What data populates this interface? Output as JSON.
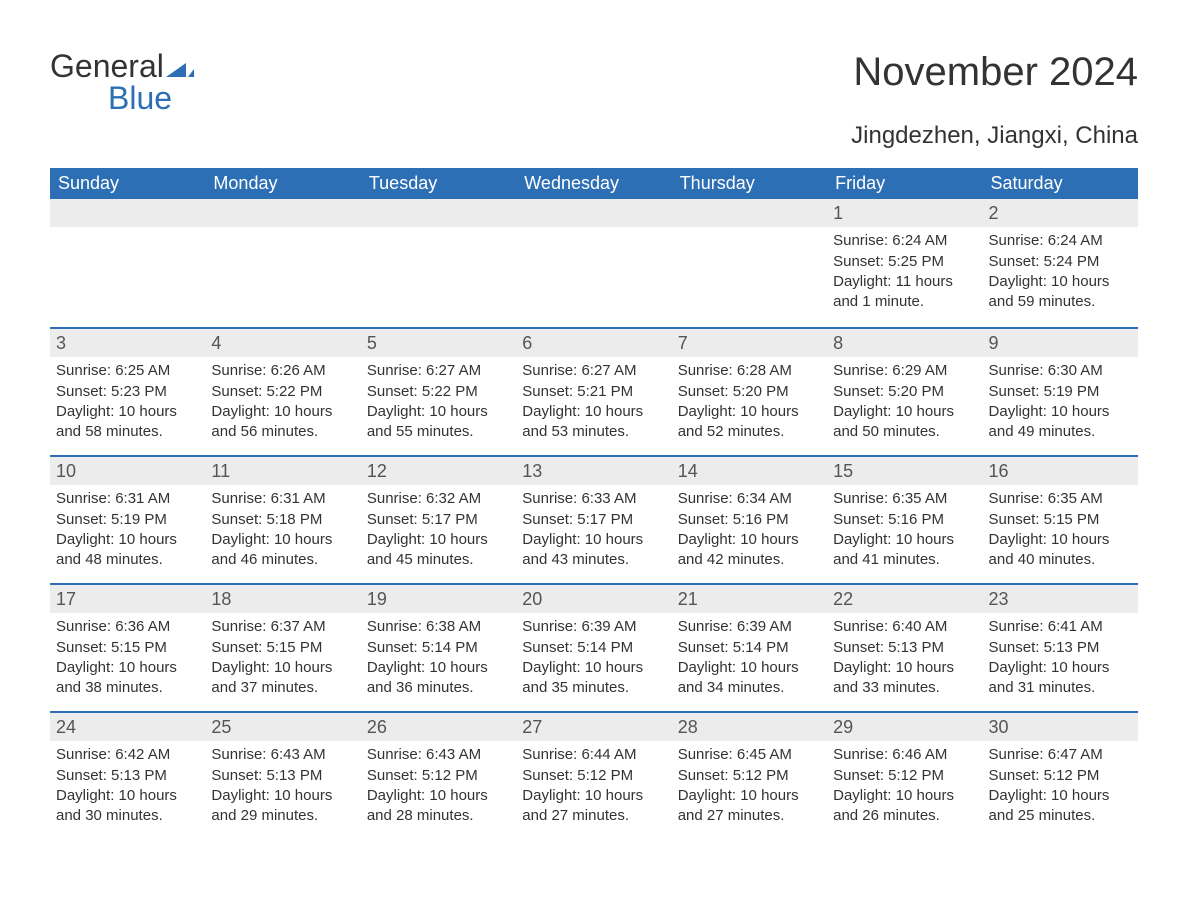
{
  "logo": {
    "text_general": "General",
    "text_blue": "Blue",
    "brand_color": "#2d6fb5"
  },
  "title": "November 2024",
  "subtitle": "Jingdezhen, Jiangxi, China",
  "header_bg": "#2d6fb5",
  "header_fg": "#ffffff",
  "daynum_bg": "#ececec",
  "week_border": "#2d6fb5",
  "text_color": "#333333",
  "weekdays": [
    "Sunday",
    "Monday",
    "Tuesday",
    "Wednesday",
    "Thursday",
    "Friday",
    "Saturday"
  ],
  "weeks": [
    [
      null,
      null,
      null,
      null,
      null,
      {
        "n": "1",
        "sunrise": "Sunrise: 6:24 AM",
        "sunset": "Sunset: 5:25 PM",
        "day1": "Daylight: 11 hours",
        "day2": "and 1 minute."
      },
      {
        "n": "2",
        "sunrise": "Sunrise: 6:24 AM",
        "sunset": "Sunset: 5:24 PM",
        "day1": "Daylight: 10 hours",
        "day2": "and 59 minutes."
      }
    ],
    [
      {
        "n": "3",
        "sunrise": "Sunrise: 6:25 AM",
        "sunset": "Sunset: 5:23 PM",
        "day1": "Daylight: 10 hours",
        "day2": "and 58 minutes."
      },
      {
        "n": "4",
        "sunrise": "Sunrise: 6:26 AM",
        "sunset": "Sunset: 5:22 PM",
        "day1": "Daylight: 10 hours",
        "day2": "and 56 minutes."
      },
      {
        "n": "5",
        "sunrise": "Sunrise: 6:27 AM",
        "sunset": "Sunset: 5:22 PM",
        "day1": "Daylight: 10 hours",
        "day2": "and 55 minutes."
      },
      {
        "n": "6",
        "sunrise": "Sunrise: 6:27 AM",
        "sunset": "Sunset: 5:21 PM",
        "day1": "Daylight: 10 hours",
        "day2": "and 53 minutes."
      },
      {
        "n": "7",
        "sunrise": "Sunrise: 6:28 AM",
        "sunset": "Sunset: 5:20 PM",
        "day1": "Daylight: 10 hours",
        "day2": "and 52 minutes."
      },
      {
        "n": "8",
        "sunrise": "Sunrise: 6:29 AM",
        "sunset": "Sunset: 5:20 PM",
        "day1": "Daylight: 10 hours",
        "day2": "and 50 minutes."
      },
      {
        "n": "9",
        "sunrise": "Sunrise: 6:30 AM",
        "sunset": "Sunset: 5:19 PM",
        "day1": "Daylight: 10 hours",
        "day2": "and 49 minutes."
      }
    ],
    [
      {
        "n": "10",
        "sunrise": "Sunrise: 6:31 AM",
        "sunset": "Sunset: 5:19 PM",
        "day1": "Daylight: 10 hours",
        "day2": "and 48 minutes."
      },
      {
        "n": "11",
        "sunrise": "Sunrise: 6:31 AM",
        "sunset": "Sunset: 5:18 PM",
        "day1": "Daylight: 10 hours",
        "day2": "and 46 minutes."
      },
      {
        "n": "12",
        "sunrise": "Sunrise: 6:32 AM",
        "sunset": "Sunset: 5:17 PM",
        "day1": "Daylight: 10 hours",
        "day2": "and 45 minutes."
      },
      {
        "n": "13",
        "sunrise": "Sunrise: 6:33 AM",
        "sunset": "Sunset: 5:17 PM",
        "day1": "Daylight: 10 hours",
        "day2": "and 43 minutes."
      },
      {
        "n": "14",
        "sunrise": "Sunrise: 6:34 AM",
        "sunset": "Sunset: 5:16 PM",
        "day1": "Daylight: 10 hours",
        "day2": "and 42 minutes."
      },
      {
        "n": "15",
        "sunrise": "Sunrise: 6:35 AM",
        "sunset": "Sunset: 5:16 PM",
        "day1": "Daylight: 10 hours",
        "day2": "and 41 minutes."
      },
      {
        "n": "16",
        "sunrise": "Sunrise: 6:35 AM",
        "sunset": "Sunset: 5:15 PM",
        "day1": "Daylight: 10 hours",
        "day2": "and 40 minutes."
      }
    ],
    [
      {
        "n": "17",
        "sunrise": "Sunrise: 6:36 AM",
        "sunset": "Sunset: 5:15 PM",
        "day1": "Daylight: 10 hours",
        "day2": "and 38 minutes."
      },
      {
        "n": "18",
        "sunrise": "Sunrise: 6:37 AM",
        "sunset": "Sunset: 5:15 PM",
        "day1": "Daylight: 10 hours",
        "day2": "and 37 minutes."
      },
      {
        "n": "19",
        "sunrise": "Sunrise: 6:38 AM",
        "sunset": "Sunset: 5:14 PM",
        "day1": "Daylight: 10 hours",
        "day2": "and 36 minutes."
      },
      {
        "n": "20",
        "sunrise": "Sunrise: 6:39 AM",
        "sunset": "Sunset: 5:14 PM",
        "day1": "Daylight: 10 hours",
        "day2": "and 35 minutes."
      },
      {
        "n": "21",
        "sunrise": "Sunrise: 6:39 AM",
        "sunset": "Sunset: 5:14 PM",
        "day1": "Daylight: 10 hours",
        "day2": "and 34 minutes."
      },
      {
        "n": "22",
        "sunrise": "Sunrise: 6:40 AM",
        "sunset": "Sunset: 5:13 PM",
        "day1": "Daylight: 10 hours",
        "day2": "and 33 minutes."
      },
      {
        "n": "23",
        "sunrise": "Sunrise: 6:41 AM",
        "sunset": "Sunset: 5:13 PM",
        "day1": "Daylight: 10 hours",
        "day2": "and 31 minutes."
      }
    ],
    [
      {
        "n": "24",
        "sunrise": "Sunrise: 6:42 AM",
        "sunset": "Sunset: 5:13 PM",
        "day1": "Daylight: 10 hours",
        "day2": "and 30 minutes."
      },
      {
        "n": "25",
        "sunrise": "Sunrise: 6:43 AM",
        "sunset": "Sunset: 5:13 PM",
        "day1": "Daylight: 10 hours",
        "day2": "and 29 minutes."
      },
      {
        "n": "26",
        "sunrise": "Sunrise: 6:43 AM",
        "sunset": "Sunset: 5:12 PM",
        "day1": "Daylight: 10 hours",
        "day2": "and 28 minutes."
      },
      {
        "n": "27",
        "sunrise": "Sunrise: 6:44 AM",
        "sunset": "Sunset: 5:12 PM",
        "day1": "Daylight: 10 hours",
        "day2": "and 27 minutes."
      },
      {
        "n": "28",
        "sunrise": "Sunrise: 6:45 AM",
        "sunset": "Sunset: 5:12 PM",
        "day1": "Daylight: 10 hours",
        "day2": "and 27 minutes."
      },
      {
        "n": "29",
        "sunrise": "Sunrise: 6:46 AM",
        "sunset": "Sunset: 5:12 PM",
        "day1": "Daylight: 10 hours",
        "day2": "and 26 minutes."
      },
      {
        "n": "30",
        "sunrise": "Sunrise: 6:47 AM",
        "sunset": "Sunset: 5:12 PM",
        "day1": "Daylight: 10 hours",
        "day2": "and 25 minutes."
      }
    ]
  ]
}
